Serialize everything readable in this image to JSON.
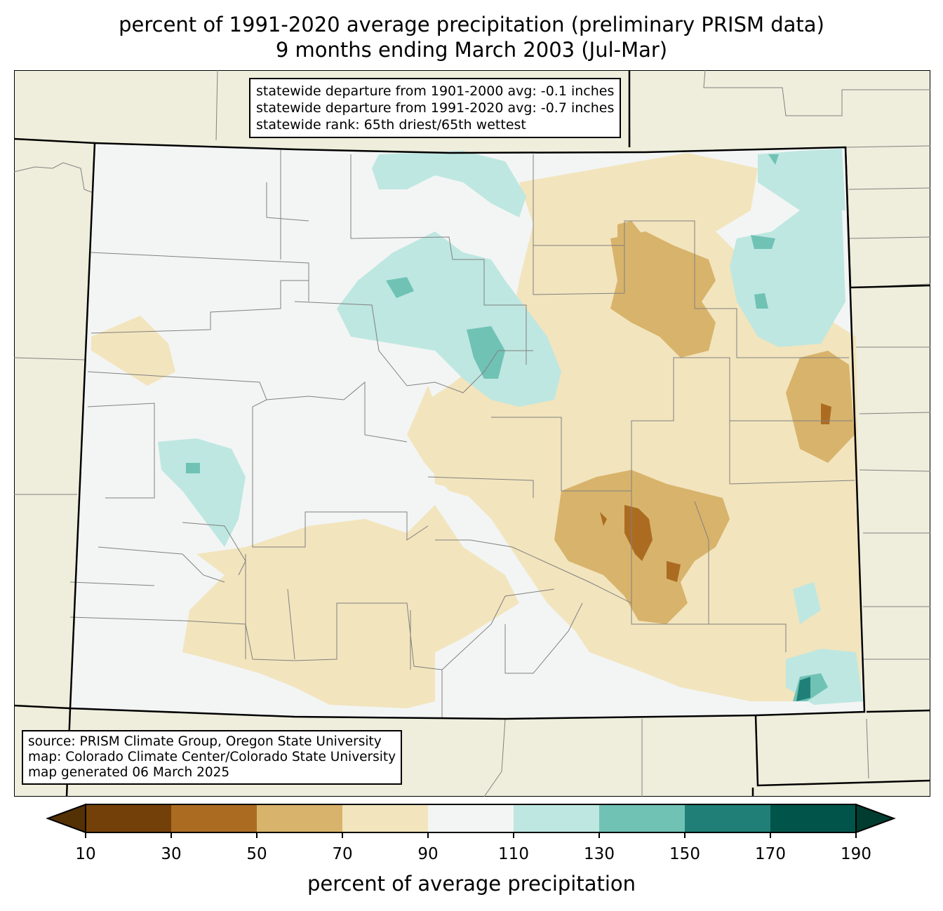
{
  "title": {
    "line1": "percent of 1991-2020 average precipitation (preliminary PRISM data)",
    "line2": "9 months ending March 2003 (Jul-Mar)"
  },
  "stats": {
    "line1": "statewide departure from 1901-2000 avg: -0.1 inches",
    "line2": "statewide departure from 1991-2020 avg: -0.7 inches",
    "line3": "statewide rank: 65th driest/65th wettest"
  },
  "source": {
    "line1": "source: PRISM Climate Group, Oregon State University",
    "line2": "map: Colorado Climate Center/Colorado State University",
    "line3": "map generated 06 March 2025"
  },
  "colorbar": {
    "label": "percent of average precipitation",
    "ticks": [
      "10",
      "30",
      "50",
      "70",
      "90",
      "110",
      "130",
      "150",
      "170",
      "190"
    ],
    "colors": [
      "#744009",
      "#ab6c22",
      "#d8b36b",
      "#f2e4bd",
      "#f3f5f4",
      "#bee7e1",
      "#70c2b5",
      "#208077",
      "#00544a"
    ],
    "under_color": "#543005",
    "over_color": "#003c30"
  },
  "colors": {
    "land": "#efeedc",
    "border": "#000000",
    "county": "#808080"
  }
}
